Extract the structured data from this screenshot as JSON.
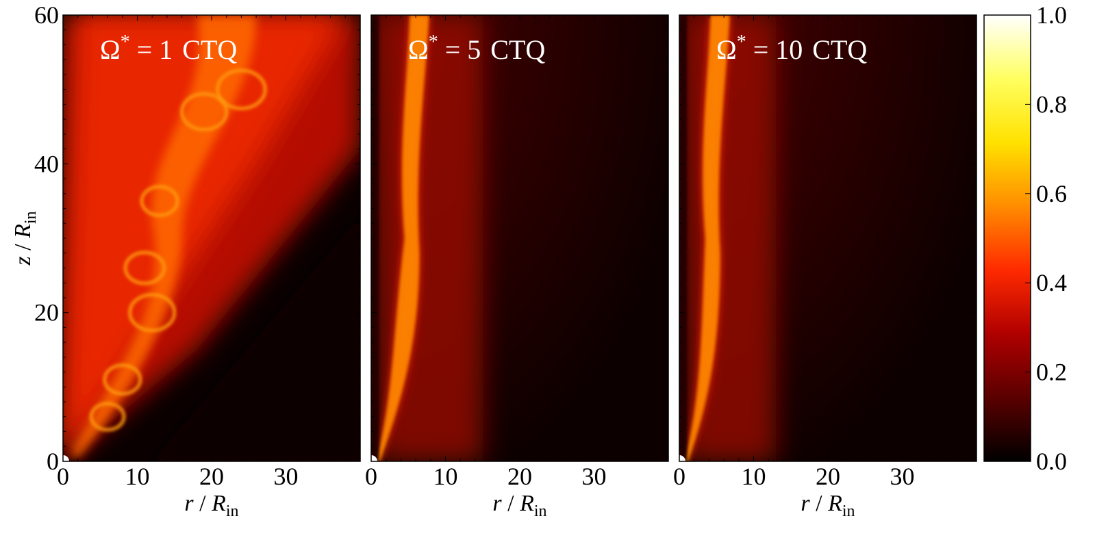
{
  "chart_data": {
    "type": "heatmap",
    "xlabel": {
      "var": "r",
      "sep": " / ",
      "sym": "R",
      "sub": "in"
    },
    "ylabel": {
      "var": "z",
      "sep": " / ",
      "sym": "R",
      "sub": "in"
    },
    "xlim": [
      0,
      40
    ],
    "ylim": [
      0,
      60
    ],
    "xticks": [
      "0",
      "10",
      "20",
      "30"
    ],
    "yticks": [
      "0",
      "20",
      "40",
      "60"
    ],
    "panels": [
      {
        "title_sym": "Ω",
        "title_sup": "*",
        "title_eq": " = ",
        "title_val": "1",
        "title_tag": "CTQ",
        "jet": "wide"
      },
      {
        "title_sym": "Ω",
        "title_sup": "*",
        "title_eq": " = ",
        "title_val": "5",
        "title_tag": "CTQ",
        "jet": "narrow"
      },
      {
        "title_sym": "Ω",
        "title_sup": "*",
        "title_eq": " = ",
        "title_val": "10",
        "title_tag": "CTQ",
        "jet": "narrow"
      }
    ],
    "colorbar": {
      "range": [
        0,
        1
      ],
      "ticks": [
        "0.0",
        "0.2",
        "0.4",
        "0.6",
        "0.8",
        "1.0"
      ],
      "colormap": "hot",
      "colors": [
        "#000000",
        "#5a0000",
        "#b00000",
        "#ff2a00",
        "#ff8c00",
        "#ffe100",
        "#ffff60",
        "#ffffff"
      ]
    }
  }
}
